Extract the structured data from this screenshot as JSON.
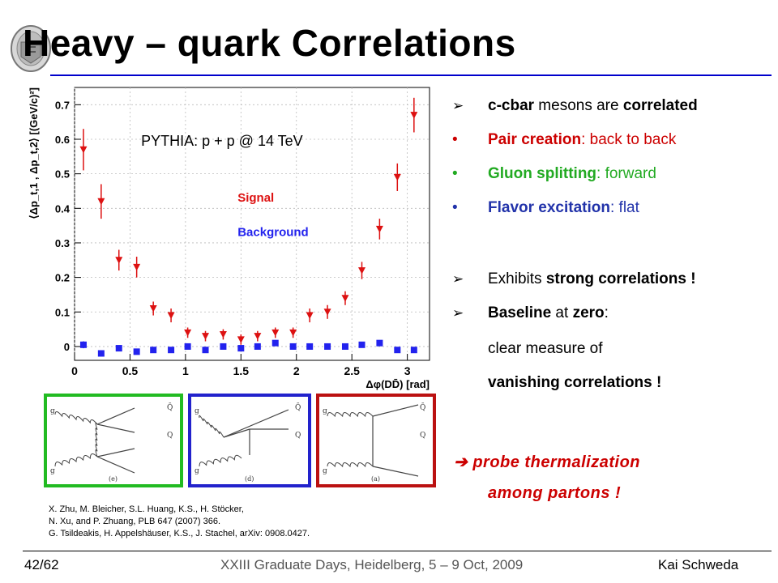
{
  "slide": {
    "title": "Heavy – quark Correlations"
  },
  "chart_data": {
    "type": "scatter",
    "annotation": "PYTHIA: p + p @ 14 TeV",
    "ylabel": "⟨Δp_t,1 , Δp_t,2⟩ [(GeV/c)²]",
    "xlabel": "Δφ(DD̄) [rad]",
    "xlim": [
      0,
      3.2
    ],
    "ylim": [
      -0.04,
      0.75
    ],
    "x_ticks": [
      "0",
      "0.5",
      "1",
      "1.5",
      "2",
      "2.5",
      "3"
    ],
    "y_ticks": [
      "0",
      "0.1",
      "0.2",
      "0.3",
      "0.4",
      "0.5",
      "0.6",
      "0.7"
    ],
    "grid": true,
    "series": [
      {
        "name": "Signal",
        "color": "#dd1111",
        "marker": "triangle-down",
        "x": [
          0.08,
          0.24,
          0.4,
          0.56,
          0.71,
          0.87,
          1.02,
          1.18,
          1.34,
          1.5,
          1.65,
          1.81,
          1.97,
          2.12,
          2.28,
          2.44,
          2.59,
          2.75,
          2.91,
          3.06
        ],
        "y": [
          0.57,
          0.42,
          0.25,
          0.23,
          0.11,
          0.09,
          0.04,
          0.03,
          0.035,
          0.02,
          0.03,
          0.04,
          0.04,
          0.09,
          0.1,
          0.14,
          0.22,
          0.34,
          0.49,
          0.67
        ],
        "err": [
          0.06,
          0.05,
          0.03,
          0.03,
          0.02,
          0.02,
          0.015,
          0.015,
          0.015,
          0.015,
          0.015,
          0.015,
          0.015,
          0.02,
          0.02,
          0.02,
          0.025,
          0.03,
          0.04,
          0.05
        ]
      },
      {
        "name": "Background",
        "color": "#2222ee",
        "marker": "square",
        "x": [
          0.08,
          0.24,
          0.4,
          0.56,
          0.71,
          0.87,
          1.02,
          1.18,
          1.34,
          1.5,
          1.65,
          1.81,
          1.97,
          2.12,
          2.28,
          2.44,
          2.59,
          2.75,
          2.91,
          3.06
        ],
        "y": [
          0.005,
          -0.02,
          -0.005,
          -0.015,
          -0.01,
          -0.01,
          0.0,
          -0.01,
          0.0,
          -0.005,
          0.0,
          0.01,
          0.0,
          0.0,
          0.0,
          0.0,
          0.005,
          0.01,
          -0.01,
          -0.01
        ],
        "err": [
          0.01,
          0.008,
          0.008,
          0.008,
          0.008,
          0.008,
          0.008,
          0.008,
          0.008,
          0.008,
          0.008,
          0.008,
          0.008,
          0.008,
          0.008,
          0.008,
          0.008,
          0.008,
          0.008,
          0.008
        ]
      }
    ]
  },
  "bullets": [
    {
      "marker": "Ø",
      "parts": [
        {
          "t": "c-cbar",
          "c": "b"
        },
        {
          "t": " mesons are ",
          "c": ""
        },
        {
          "t": "correlated",
          "c": "b"
        }
      ]
    },
    {
      "marker": "•",
      "cls": "red",
      "parts": [
        {
          "t": "Pair creation",
          "c": "b"
        },
        {
          "t": ": back to back",
          "c": ""
        }
      ]
    },
    {
      "marker": "•",
      "cls": "green",
      "parts": [
        {
          "t": "Gluon splitting",
          "c": "b"
        },
        {
          "t": ": forward",
          "c": ""
        }
      ]
    },
    {
      "marker": "•",
      "cls": "blue",
      "parts": [
        {
          "t": "Flavor excitation",
          "c": "b"
        },
        {
          "t": ": flat",
          "c": ""
        }
      ]
    },
    {
      "marker": "Ø",
      "parts": [
        {
          "t": "Exhibits ",
          "c": ""
        },
        {
          "t": "strong correlations !",
          "c": "b"
        }
      ]
    },
    {
      "marker": "Ø",
      "parts": [
        {
          "t": "Baseline",
          "c": "b"
        },
        {
          "t": " at ",
          "c": ""
        },
        {
          "t": "zero",
          "c": "b"
        },
        {
          "t": ":",
          "c": ""
        }
      ]
    },
    {
      "marker": "",
      "parts": [
        {
          "t": "clear measure of",
          "c": ""
        }
      ]
    },
    {
      "marker": "",
      "parts": [
        {
          "t": "vanishing correlations !",
          "c": "b"
        }
      ]
    }
  ],
  "conclusion": {
    "arrow": "➔",
    "line1": " probe thermalization",
    "line2": "among partons !"
  },
  "diagrams": [
    {
      "border": "#22bb22",
      "caption": "(e)",
      "labels": [
        "g",
        "g",
        "Q̄",
        "Q"
      ]
    },
    {
      "border": "#2222cc",
      "caption": "(d)",
      "labels": [
        "g",
        "g",
        "Q̄",
        "Q"
      ]
    },
    {
      "border": "#bb1111",
      "caption": "(a)",
      "labels": [
        "g",
        "g",
        "Q̄",
        "Q"
      ]
    }
  ],
  "references": [
    "X. Zhu, M. Bleicher, S.L. Huang, K.S., H. Stöcker,",
    "N. Xu, and P. Zhuang, PLB 647 (2007) 366.",
    "G. Tsildeakis, H. Appelshäuser, K.S., J. Stachel, arXiv: 0908.0427."
  ],
  "footer": {
    "page": "42/62",
    "event": "XXIII Graduate Days, Heidelberg, 5 – 9 Oct, 2009",
    "author": "Kai Schweda"
  }
}
